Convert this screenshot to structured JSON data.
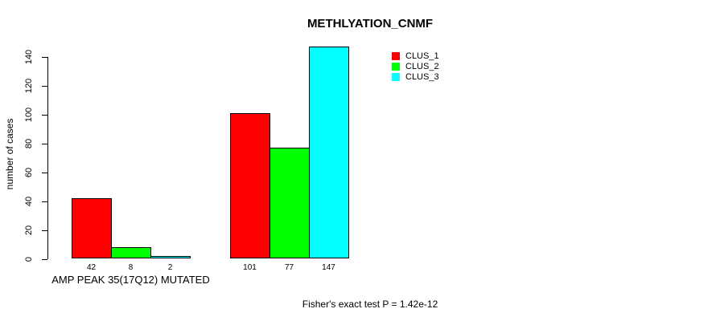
{
  "chart_data": {
    "type": "bar",
    "title": "METHLYATION_CNMF",
    "ylabel": "number of cases",
    "xlabel": "",
    "categories": [
      "AMP PEAK 35(17Q12) MUTATED",
      ""
    ],
    "series": [
      {
        "name": "CLUS_1",
        "color": "#ff0000",
        "values": [
          42,
          101
        ]
      },
      {
        "name": "CLUS_2",
        "color": "#00ff00",
        "values": [
          8,
          77
        ]
      },
      {
        "name": "CLUS_3",
        "color": "#00ffff",
        "values": [
          2,
          147
        ]
      }
    ],
    "bar_value_labels": [
      [
        "42",
        "8",
        "2"
      ],
      [
        "101",
        "77",
        "147"
      ]
    ],
    "yticks": [
      0,
      20,
      40,
      60,
      80,
      100,
      120,
      140
    ],
    "ylim": [
      0,
      147
    ],
    "grid": false,
    "legend_position": "top-right",
    "annotation": "Fisher's exact test P = 1.42e-12",
    "bar_border_color": "#000000"
  }
}
